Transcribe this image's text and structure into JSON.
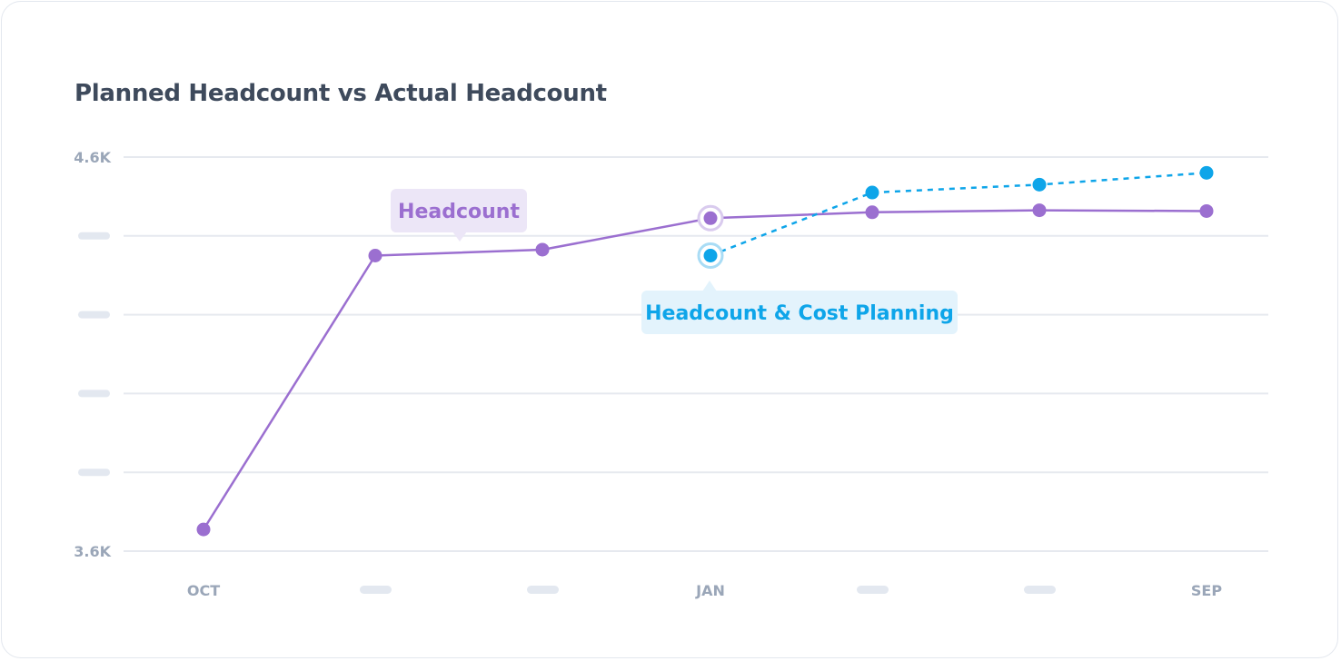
{
  "chart_data": {
    "type": "line",
    "title": "Planned Headcount vs Actual Headcount",
    "x_labels": [
      "OCT",
      "",
      "",
      "JAN",
      "",
      "",
      "SEP"
    ],
    "y_tick_labels": [
      "4.6K",
      "",
      "",
      "",
      "",
      "3.6K"
    ],
    "ylim": [
      3600,
      4600
    ],
    "grid": true,
    "series": [
      {
        "name": "Headcount",
        "color": "#9b6fd0",
        "line_style": "solid",
        "x_index": [
          0,
          1,
          2,
          3,
          4,
          5,
          6
        ],
        "values": [
          3655,
          4350,
          4365,
          4445,
          4460,
          4465,
          4463
        ]
      },
      {
        "name": "Headcount & Cost Planning",
        "color": "#0ea5e9",
        "line_style": "dashed",
        "x_index": [
          3,
          4,
          5,
          6
        ],
        "values": [
          4350,
          4510,
          4530,
          4560
        ]
      }
    ]
  },
  "colors": {
    "title": "#3e4a5c",
    "axis_text": "#9aa6b8",
    "grid": "#e6e9ef",
    "placeholder": "#e3e8f0",
    "headcount": "#9b6fd0",
    "headcount_callout_bg": "#ece6f7",
    "planning": "#0ea5e9",
    "planning_callout_bg": "#e3f3fc"
  }
}
